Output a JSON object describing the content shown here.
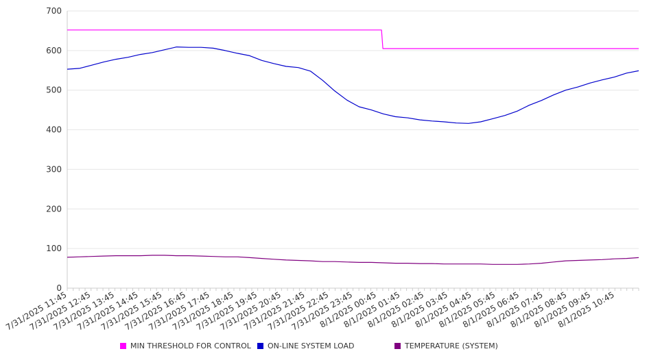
{
  "chart_data": {
    "type": "line",
    "title": "",
    "xlabel": "",
    "ylabel": "",
    "ylim": [
      0,
      700
    ],
    "yticks": [
      0,
      100,
      200,
      300,
      400,
      500,
      600,
      700
    ],
    "grid": true,
    "legend_position": "bottom",
    "x_tick_labels": [
      "7/31/2025 11:45",
      "7/31/2025 12:45",
      "7/31/2025 13:45",
      "7/31/2025 14:45",
      "7/31/2025 15:45",
      "7/31/2025 16:45",
      "7/31/2025 17:45",
      "7/31/2025 18:45",
      "7/31/2025 19:45",
      "7/31/2025 20:45",
      "7/31/2025 21:45",
      "7/31/2025 22:45",
      "7/31/2025 23:45",
      "8/1/2025 00:45",
      "8/1/2025 01:45",
      "8/1/2025 02:45",
      "8/1/2025 03:45",
      "8/1/2025 04:45",
      "8/1/2025 05:45",
      "8/1/2025 06:45",
      "8/1/2025 07:45",
      "8/1/2025 08:45",
      "8/1/2025 09:45",
      "8/1/2025 10:45"
    ],
    "x": [
      "7/31/2025 11:45",
      "7/31/2025 12:15",
      "7/31/2025 12:45",
      "7/31/2025 13:15",
      "7/31/2025 13:45",
      "7/31/2025 14:15",
      "7/31/2025 14:45",
      "7/31/2025 15:15",
      "7/31/2025 15:45",
      "7/31/2025 16:15",
      "7/31/2025 16:45",
      "7/31/2025 17:15",
      "7/31/2025 17:45",
      "7/31/2025 18:15",
      "7/31/2025 18:45",
      "7/31/2025 19:15",
      "7/31/2025 19:45",
      "7/31/2025 20:15",
      "7/31/2025 20:45",
      "7/31/2025 21:15",
      "7/31/2025 21:45",
      "7/31/2025 22:15",
      "7/31/2025 22:45",
      "7/31/2025 23:15",
      "7/31/2025 23:45",
      "8/1/2025 00:15",
      "8/1/2025 00:45",
      "8/1/2025 01:15",
      "8/1/2025 01:45",
      "8/1/2025 02:15",
      "8/1/2025 02:45",
      "8/1/2025 03:15",
      "8/1/2025 03:45",
      "8/1/2025 04:15",
      "8/1/2025 04:45",
      "8/1/2025 05:15",
      "8/1/2025 05:45",
      "8/1/2025 06:15",
      "8/1/2025 06:45",
      "8/1/2025 07:15",
      "8/1/2025 07:45",
      "8/1/2025 08:15",
      "8/1/2025 08:45",
      "8/1/2025 09:15",
      "8/1/2025 09:45",
      "8/1/2025 10:15",
      "8/1/2025 10:45",
      "8/1/2025 11:15"
    ],
    "series": [
      {
        "name": "MIN THRESHOLD FOR CONTROL",
        "color": "#ff00ff",
        "step": true,
        "values": [
          652,
          652,
          652,
          652,
          652,
          652,
          652,
          652,
          652,
          652,
          652,
          652,
          652,
          652,
          652,
          652,
          652,
          652,
          652,
          652,
          652,
          652,
          652,
          652,
          652,
          652,
          605,
          605,
          605,
          605,
          605,
          605,
          605,
          605,
          605,
          605,
          605,
          605,
          605,
          605,
          605,
          605,
          605,
          605,
          605,
          605,
          605,
          605
        ]
      },
      {
        "name": "ON-LINE SYSTEM LOAD",
        "color": "#0000cc",
        "step": false,
        "values": [
          553,
          555,
          563,
          571,
          578,
          583,
          590,
          595,
          602,
          609,
          608,
          608,
          606,
          600,
          593,
          587,
          575,
          567,
          560,
          557,
          548,
          525,
          498,
          475,
          458,
          450,
          440,
          433,
          430,
          425,
          422,
          420,
          417,
          416,
          420,
          428,
          436,
          447,
          462,
          474,
          488,
          500,
          508,
          518,
          526,
          533,
          543,
          549
        ]
      },
      {
        "name": "TEMPERATURE (SYSTEM)",
        "color": "#800080",
        "step": false,
        "values": [
          78,
          79,
          80,
          81,
          82,
          82,
          82,
          83,
          83,
          82,
          82,
          81,
          80,
          79,
          79,
          77,
          75,
          73,
          71,
          70,
          69,
          67,
          67,
          66,
          65,
          65,
          64,
          63,
          63,
          62,
          62,
          61,
          61,
          61,
          61,
          60,
          60,
          60,
          61,
          63,
          66,
          69,
          70,
          71,
          72,
          74,
          75,
          77
        ]
      }
    ]
  }
}
